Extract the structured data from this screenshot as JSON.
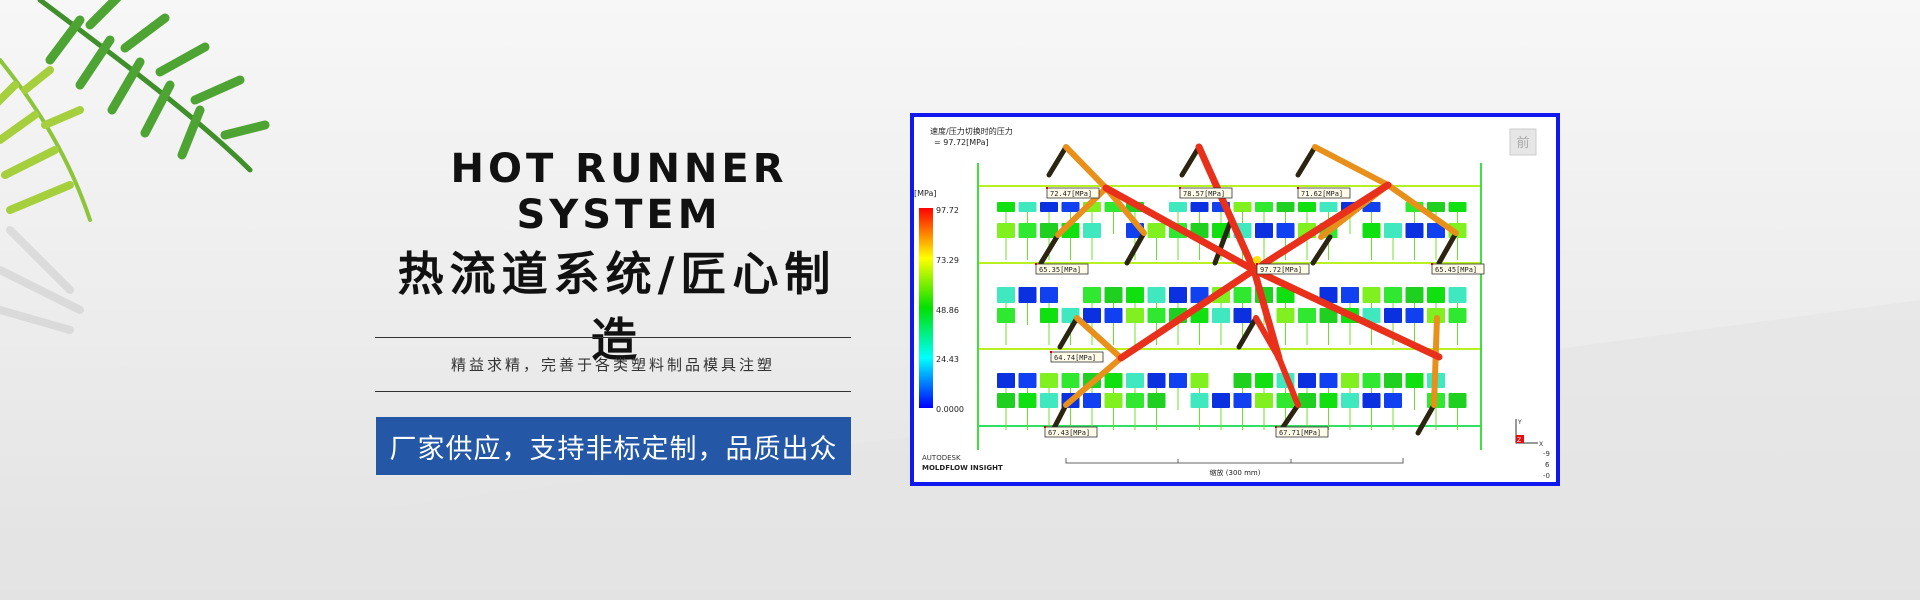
{
  "hero": {
    "title_en": "HOT RUNNER SYSTEM",
    "title_cn": "热流道系统/匠心制造",
    "subtitle": "精益求精，完善于各类塑料制品模具注塑",
    "banner": "厂家供应，支持非标定制，品质出众"
  },
  "simulation": {
    "result_title": "速度/压力切换时的压力",
    "result_value": "= 97.72[MPa]",
    "unit": "[MPa]",
    "scale_ticks": [
      "97.72",
      "73.29",
      "48.86",
      "24.43",
      "0.0000"
    ],
    "view_button": "前",
    "brand_line1": "AUTODESK",
    "brand_line2": "MOLDFLOW INSIGHT",
    "scale_label": "缩放 (300 mm)",
    "axis_y": "Y",
    "axis_z": "Z",
    "axis_x": "X",
    "axis_readout": [
      "-9",
      "6",
      "-0"
    ],
    "labels": [
      "72.47[MPa]",
      "78.57[MPa]",
      "71.62[MPa]",
      "65.35[MPa]",
      "97.72[MPa]",
      "65.45[MPa]",
      "64.74[MPa]",
      "67.43[MPa]",
      "67.71[MPa]"
    ],
    "colors": {
      "frame": "#1018f0",
      "hot": "#e8301a",
      "warm": "#e8901a",
      "banner": "#2457a6"
    }
  }
}
